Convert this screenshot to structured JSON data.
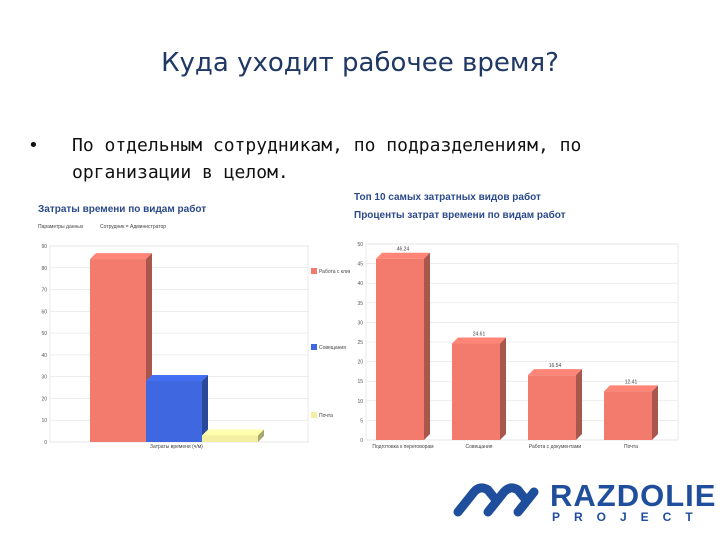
{
  "slide": {
    "title": "Куда уходит рабочее время?",
    "bullet": "По отдельным сотрудникам, по подразделениям, по организации в целом."
  },
  "left_panel": {
    "title": "Затраты времени по видам работ",
    "param_label": "Параметры данных",
    "filter_label": "Сотрудник = Администратор",
    "x_caption": "Затраты времени (ч/м)"
  },
  "right_panel": {
    "heading": "Топ 10 самых затратных видов работ",
    "subtitle": "Проценты затрат времени по видам работ"
  },
  "brand": {
    "name": "RAZDOLIE",
    "sub": "PROJECT",
    "color": "#1f4e9c"
  },
  "chart_data": [
    {
      "type": "bar",
      "title": "Затраты времени по видам работ",
      "xlabel": "Затраты времени (ч/м)",
      "ylim": [
        0,
        90
      ],
      "yticks": [
        0,
        10,
        20,
        30,
        40,
        50,
        60,
        70,
        80,
        90
      ],
      "legend_position": "right",
      "series": [
        {
          "name": "Работа с клиентами",
          "value": 84,
          "color": "#f27b6e"
        },
        {
          "name": "Совещания",
          "value": 28,
          "color": "#3f67e0"
        },
        {
          "name": "Почта",
          "value": 3,
          "color": "#f2f0a0"
        }
      ]
    },
    {
      "type": "bar",
      "title": "Проценты затрат времени по видам работ",
      "ylim": [
        0,
        50
      ],
      "yticks": [
        0,
        5,
        10,
        15,
        20,
        25,
        30,
        35,
        40,
        45,
        50
      ],
      "categories": [
        "Подготовка к переговорам",
        "Совещания",
        "Работа с документами",
        "Почта"
      ],
      "values": [
        46.24,
        24.61,
        16.54,
        12.41
      ],
      "value_labels": [
        "46.24",
        "24.61",
        "16.54",
        "12.41"
      ],
      "color": "#f27b6e"
    }
  ]
}
